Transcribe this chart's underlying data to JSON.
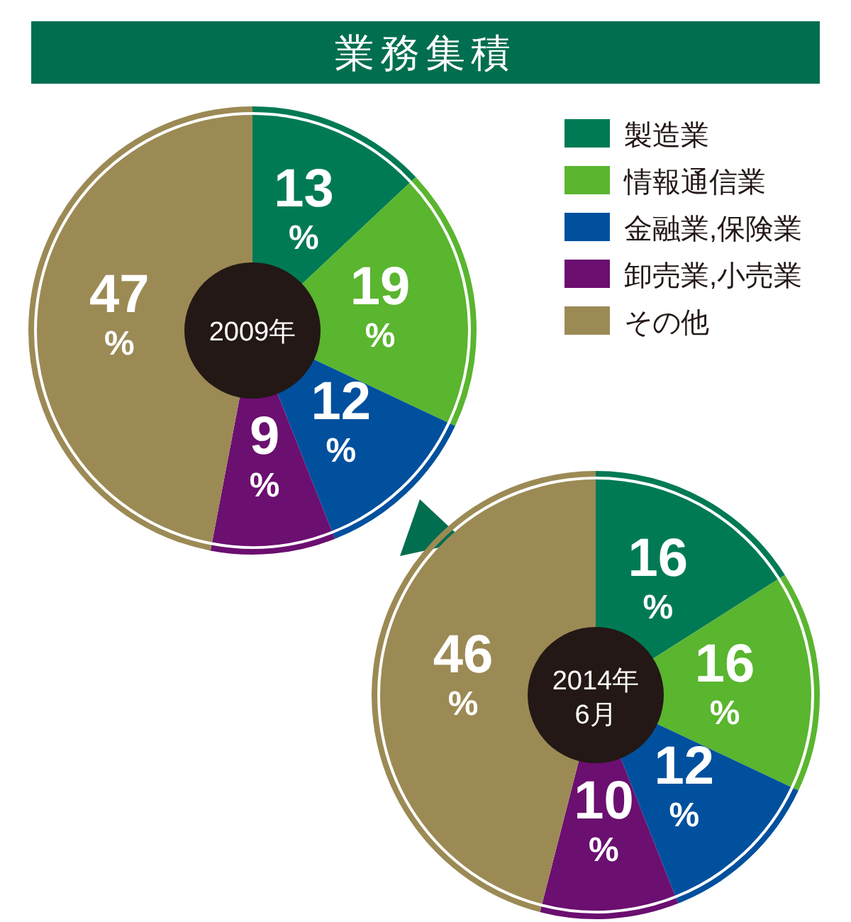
{
  "chart_data": [
    {
      "type": "donut",
      "title": "業務集積",
      "annotations": [
        "2009年"
      ],
      "categories": [
        "製造業",
        "情報通信業",
        "金融業,保険業",
        "卸売業,小売業",
        "その他"
      ],
      "values": [
        13,
        19,
        12,
        9,
        47
      ],
      "colors": [
        "#007a55",
        "#5ab52f",
        "#00509e",
        "#6b0f70",
        "#9c8a55"
      ],
      "value_labels": [
        "13$_{%}$",
        "19$_{%}$",
        "12$_{%}$",
        "9$_{%}$",
        "47$_{%}$"
      ],
      "legend": "top right"
    },
    {
      "type": "donut",
      "annotations": [
        "2014年6月"
      ],
      "categories": [
        null,
        null,
        null,
        null,
        null
      ],
      "values": [
        16,
        16,
        12,
        10,
        46
      ],
      "colors": [
        "#007a55",
        "#5ab52f",
        "#00509e",
        "#6b0f70",
        "#9c8a55"
      ],
      "value_labels": [
        "16$_{%}$",
        "16$_{%}$",
        "12$_{%}$",
        "10$_{%}$",
        "46$_{%}$"
      ]
    }
  ]
}
